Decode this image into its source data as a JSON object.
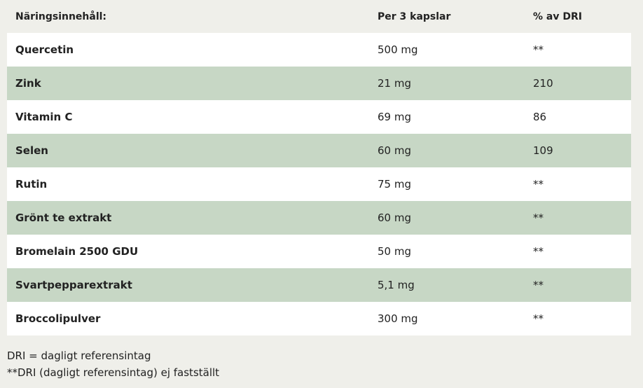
{
  "table": {
    "header": [
      "Näringsinnehåll:",
      "Per 3 kapslar",
      "% av DRI"
    ],
    "rows": [
      [
        "Quercetin",
        "500 mg",
        "**"
      ],
      [
        "Zink",
        "21 mg",
        "210"
      ],
      [
        "Vitamin C",
        "69 mg",
        "86"
      ],
      [
        "Selen",
        "60 mg",
        "109"
      ],
      [
        "Rutin",
        "75 mg",
        "**"
      ],
      [
        "Grönt te extrakt",
        "60 mg",
        "**"
      ],
      [
        "Bromelain 2500 GDU",
        "50 mg",
        "**"
      ],
      [
        "Svartpepparextrakt",
        "5,1 mg",
        "**"
      ],
      [
        "Broccolipulver",
        "300 mg",
        "**"
      ]
    ]
  },
  "notes": [
    "DRI = dagligt referensintag",
    "**DRI (dagligt referensintag) ej fastställt"
  ]
}
